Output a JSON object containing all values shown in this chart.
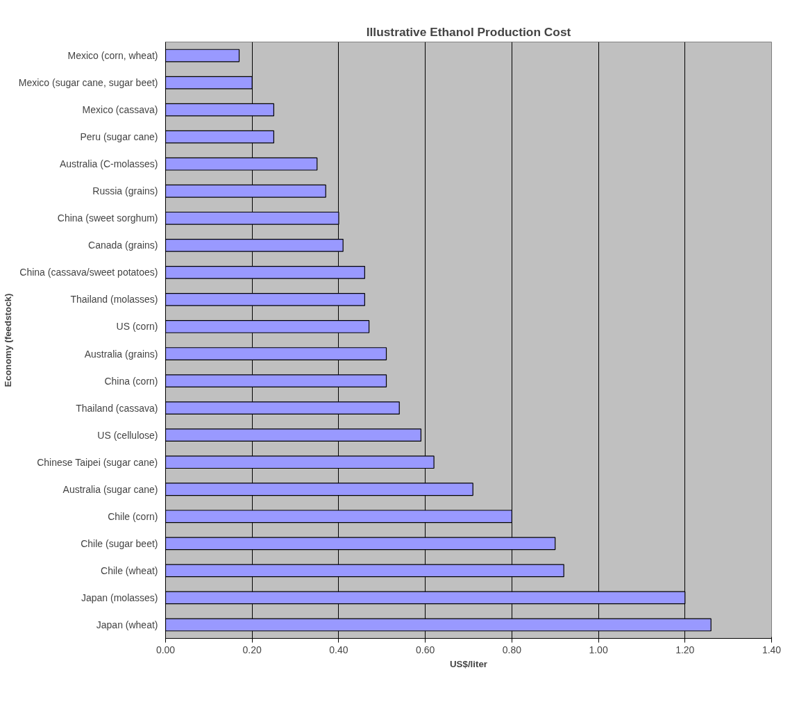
{
  "chart_data": {
    "type": "bar",
    "orientation": "horizontal",
    "title": "Illustrative Ethanol Production Cost",
    "xlabel": "US$/liter",
    "ylabel": "Economy (feedstock)",
    "categories": [
      "Mexico (corn, wheat)",
      "Mexico (sugar cane, sugar beet)",
      "Mexico (cassava)",
      "Peru (sugar cane)",
      "Australia (C-molasses)",
      "Russia (grains)",
      "China (sweet sorghum)",
      "Canada (grains)",
      "China (cassava/sweet potatoes)",
      "Thailand (molasses)",
      "US (corn)",
      "Australia (grains)",
      "China (corn)",
      "Thailand (cassava)",
      "US (cellulose)",
      "Chinese Taipei (sugar cane)",
      "Australia (sugar cane)",
      "Chile (corn)",
      "Chile (sugar beet)",
      "Chile (wheat)",
      "Japan (molasses)",
      "Japan (wheat)"
    ],
    "values": [
      0.17,
      0.2,
      0.25,
      0.25,
      0.35,
      0.37,
      0.4,
      0.41,
      0.46,
      0.46,
      0.47,
      0.51,
      0.51,
      0.54,
      0.59,
      0.62,
      0.71,
      0.8,
      0.9,
      0.92,
      1.2,
      1.26
    ],
    "color": "#9999ff",
    "xlim": [
      0,
      1.4
    ],
    "xticks": [
      {
        "value": 0,
        "label": "0.00"
      },
      {
        "value": 0.2,
        "label": "0.20"
      },
      {
        "value": 0.4,
        "label": "0.40"
      },
      {
        "value": 0.6,
        "label": "0.60"
      },
      {
        "value": 0.8,
        "label": "0.80"
      },
      {
        "value": 1.0,
        "label": "1.00"
      },
      {
        "value": 1.2,
        "label": "1.20"
      },
      {
        "value": 1.4,
        "label": "1.40"
      }
    ],
    "grid": "x"
  }
}
